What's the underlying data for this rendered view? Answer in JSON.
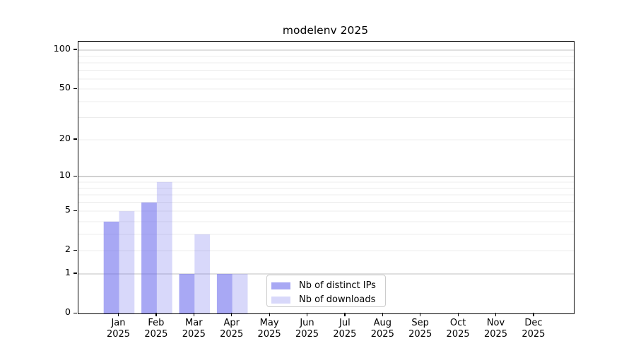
{
  "chart_data": {
    "type": "bar",
    "title": "modelenv 2025",
    "x_tick_labels": [
      [
        "Jan",
        "2025"
      ],
      [
        "Feb",
        "2025"
      ],
      [
        "Mar",
        "2025"
      ],
      [
        "Apr",
        "2025"
      ],
      [
        "May",
        "2025"
      ],
      [
        "Jun",
        "2025"
      ],
      [
        "Jul",
        "2025"
      ],
      [
        "Aug",
        "2025"
      ],
      [
        "Sep",
        "2025"
      ],
      [
        "Oct",
        "2025"
      ],
      [
        "Nov",
        "2025"
      ],
      [
        "Dec",
        "2025"
      ]
    ],
    "series": [
      {
        "name": "Nb of distinct IPs",
        "color": "rgba(100,100,235,0.56)",
        "values": [
          4,
          6,
          1,
          1,
          0,
          0,
          0,
          0,
          0,
          0,
          0,
          0
        ]
      },
      {
        "name": "Nb of downloads",
        "color": "rgba(100,100,235,0.25)",
        "values": [
          5,
          9,
          3,
          1,
          0,
          0,
          0,
          0,
          0,
          0,
          0,
          0
        ]
      }
    ],
    "y_axis": {
      "scale": "log1p",
      "tick_labels": [
        "0",
        "1",
        "2",
        "5",
        "10",
        "20",
        "50",
        "100"
      ],
      "tick_values": [
        0,
        1,
        2,
        5,
        10,
        20,
        50,
        100
      ],
      "major_gridline_values": [
        1,
        10,
        100
      ],
      "minor_gridline_values": [
        2,
        3,
        4,
        5,
        6,
        7,
        8,
        9,
        20,
        30,
        40,
        50,
        60,
        70,
        80,
        90
      ],
      "ylim": [
        0,
        117
      ]
    },
    "grid": true,
    "legend_position": "inside lower center",
    "colors": {
      "spine": "#000000",
      "major_grid": "#c2c2c2",
      "minor_grid": "#ececec",
      "legend_border": "#cccccc"
    }
  }
}
